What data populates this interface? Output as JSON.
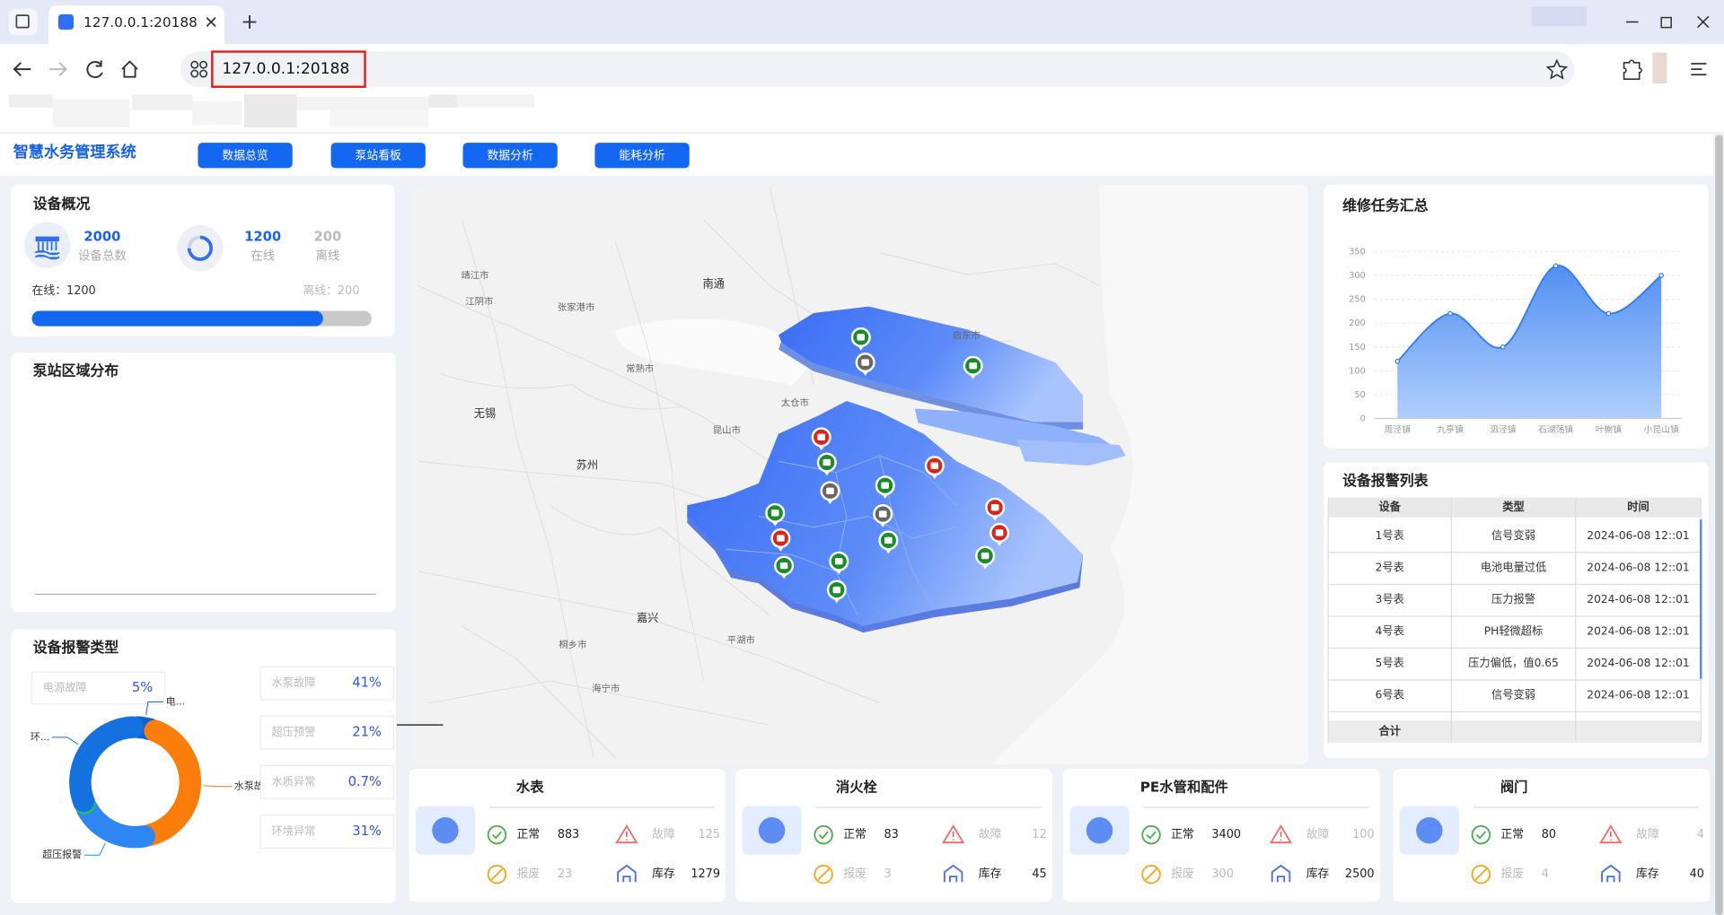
{
  "browser": {
    "tab_title": "127.0.0.1:20188",
    "url": "127.0.0.1:20188"
  },
  "header": {
    "title": "智慧水务管理系统",
    "nav": [
      "数据总览",
      "泵站看板",
      "数据分析",
      "能耗分析"
    ]
  },
  "device_overview": {
    "title": "设备概况",
    "total": 2000,
    "total_label": "设备总数",
    "online": 1200,
    "online_label": "在线",
    "offline": 200,
    "offline_label": "离线",
    "bar_online_text": "在线：1200",
    "bar_offline_text": "离线：200"
  },
  "pump_distribution": {
    "title": "泵站区域分布"
  },
  "alarm_types": {
    "title": "设备报警类型",
    "type": "donut",
    "items": [
      {
        "name": "电源故障",
        "value": 5,
        "value_label": "5%",
        "chart_label": "电...",
        "color": "#0b62d6"
      },
      {
        "name": "水泵故障",
        "value": 41,
        "value_label": "41%",
        "chart_label": "水泵故障",
        "color": "#fb7d0c"
      },
      {
        "name": "超压预警",
        "value": 21,
        "value_label": "21%",
        "chart_label": "超压报警",
        "color": "#2e86f2"
      },
      {
        "name": "水质异常",
        "value": 0.7,
        "value_label": "0.7%",
        "color": "#22c55e"
      },
      {
        "name": "环境异常",
        "value": 31,
        "value_label": "31%",
        "chart_label": "环...",
        "color": "#1570e0"
      }
    ]
  },
  "map": {
    "cities": [
      "靖江市",
      "江阴市",
      "张家港市",
      "南通",
      "启东市",
      "常熟市",
      "太仓市",
      "无锡",
      "昆山市",
      "苏州",
      "嘉兴",
      "平湖市",
      "桐乡市",
      "海宁市"
    ]
  },
  "maintenance": {
    "title": "维修任务汇总",
    "type": "line",
    "categories": [
      "周泾镇",
      "九亭镇",
      "泗泾镇",
      "石湖荡镇",
      "叶榭镇",
      "小昆山镇"
    ],
    "values": [
      120,
      220,
      150,
      320,
      220,
      300
    ],
    "ylim": [
      0,
      350
    ],
    "yticks": [
      0,
      50,
      100,
      150,
      200,
      250,
      300,
      350
    ],
    "color": "#2f7bef",
    "grid": true,
    "area": true
  },
  "alarm_list": {
    "title": "设备报警列表",
    "columns": [
      "设备",
      "类型",
      "时间"
    ],
    "rows": [
      [
        "1号表",
        "信号变弱",
        "2024-06-08 12::01"
      ],
      [
        "2号表",
        "电池电量过低",
        "2024-06-08 12::01"
      ],
      [
        "3号表",
        "压力报警",
        "2024-06-08 12::01"
      ],
      [
        "4号表",
        "PH轻微超标",
        "2024-06-08 12::01"
      ],
      [
        "5号表",
        "压力偏低，值0.65",
        "2024-06-08 12::01"
      ],
      [
        "6号表",
        "信号变弱",
        "2024-06-08 12::01"
      ]
    ],
    "footer": "合计"
  },
  "inventory": [
    {
      "name": "水表",
      "stats": [
        {
          "label": "正常",
          "value": 883
        },
        {
          "label": "故障",
          "value": 125
        },
        {
          "label": "报废",
          "value": 23
        },
        {
          "label": "库存",
          "value": 1279
        }
      ]
    },
    {
      "name": "消火栓",
      "stats": [
        {
          "label": "正常",
          "value": 83
        },
        {
          "label": "故障",
          "value": 12
        },
        {
          "label": "报废",
          "value": 3
        },
        {
          "label": "库存",
          "value": 45
        }
      ]
    },
    {
      "name": "PE水管和配件",
      "stats": [
        {
          "label": "正常",
          "value": 3400
        },
        {
          "label": "故障",
          "value": 100
        },
        {
          "label": "报废",
          "value": 300
        },
        {
          "label": "库存",
          "value": 2500
        }
      ]
    },
    {
      "name": "阀门",
      "stats": [
        {
          "label": "正常",
          "value": 80
        },
        {
          "label": "故障",
          "value": 4
        },
        {
          "label": "报废",
          "value": 4
        },
        {
          "label": "库存",
          "value": 40
        }
      ]
    }
  ]
}
